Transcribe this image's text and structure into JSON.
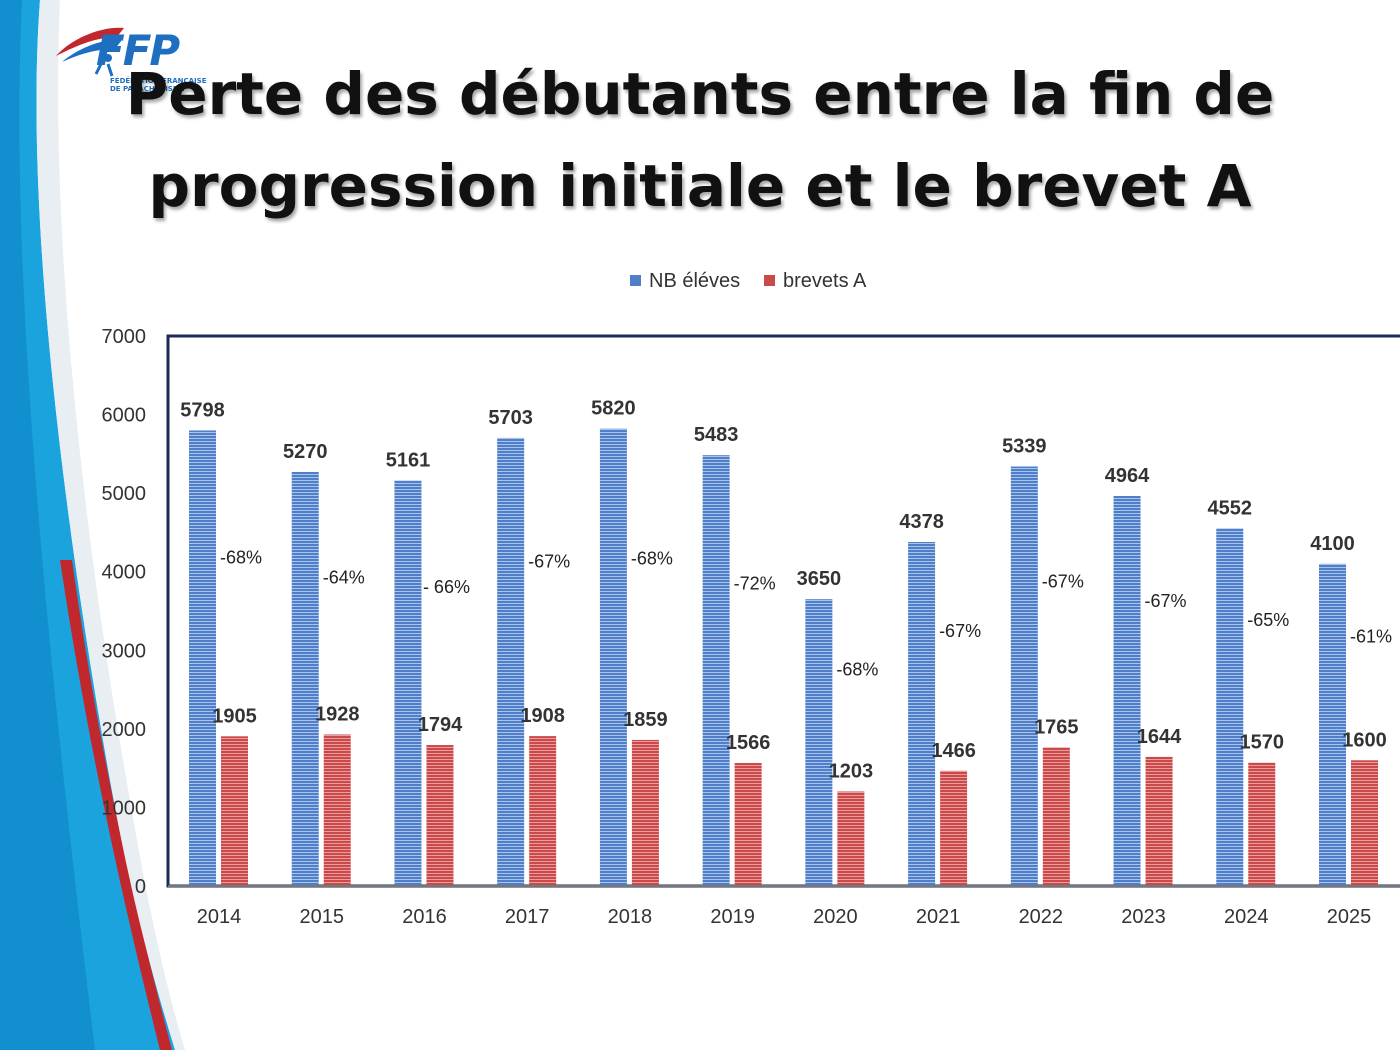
{
  "slide": {
    "title": "Perte des débutants entre la fin de progression initiale et le brevet A"
  },
  "logo": {
    "text": "FFP",
    "subtitle_line1": "FÉDÉRATION FRANÇAISE",
    "subtitle_line2": "DE PARACHUTISME"
  },
  "colors": {
    "series1": "#4f7fc9",
    "series2": "#c94a4a",
    "frame": "#1a2a55",
    "accent_blue": "#1a9fd8",
    "accent_red": "#c0282d"
  },
  "chart_data": {
    "type": "bar",
    "title": "",
    "legend_position": "top",
    "categories": [
      "2014",
      "2015",
      "2016",
      "2017",
      "2018",
      "2019",
      "2020",
      "2021",
      "2022",
      "2023",
      "2024",
      "2025"
    ],
    "series": [
      {
        "name": "NB éléves",
        "values": [
          5798,
          5270,
          5161,
          5703,
          5820,
          5483,
          3650,
          4378,
          5339,
          4964,
          4552,
          4100
        ]
      },
      {
        "name": "brevets A",
        "values": [
          1905,
          1928,
          1794,
          1908,
          1859,
          1566,
          1203,
          1466,
          1765,
          1644,
          1570,
          1600
        ]
      }
    ],
    "annotations": [
      "-68%",
      "-64%",
      "- 66%",
      "-67%",
      "-68%",
      "-72%",
      "-68%",
      "-67%",
      "-67%",
      "-67%",
      "-65%",
      "-61%"
    ],
    "ylim": [
      0,
      7000
    ],
    "yticks": [
      0,
      1000,
      2000,
      3000,
      4000,
      5000,
      6000,
      7000
    ],
    "xlabel": "",
    "ylabel": ""
  }
}
